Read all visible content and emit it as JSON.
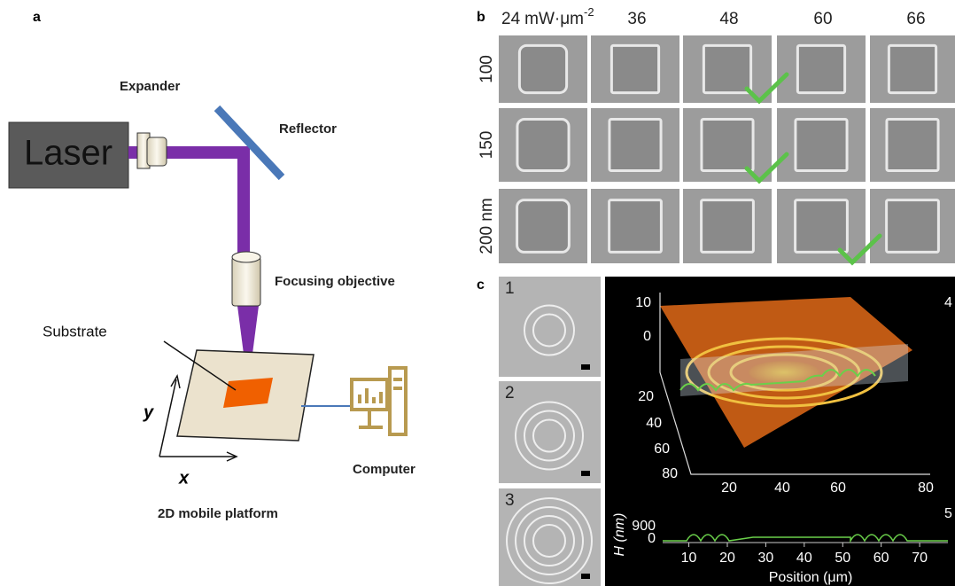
{
  "panel_a": {
    "label": "a",
    "laser": "Laser",
    "expander": "Expander",
    "reflector": "Reflector",
    "objective": "Focusing objective",
    "substrate": "Substrate",
    "computer": "Computer",
    "platform": "2D mobile platform",
    "axis_y": "y",
    "axis_x": "x"
  },
  "panel_b": {
    "label": "b",
    "columns": [
      "24",
      "36",
      "48",
      "60",
      "66"
    ],
    "column_unit": "mW·μm",
    "column_unit_exponent": "-2",
    "rows": [
      "100",
      "150",
      "200 nm"
    ]
  },
  "panel_c": {
    "label": "c",
    "insets": [
      "1",
      "2",
      "3"
    ],
    "surface": {
      "label": "4",
      "z_ticks": [
        10,
        0
      ],
      "y_ticks": [
        20,
        40,
        60,
        80
      ],
      "x_ticks": [
        20,
        40,
        60,
        80
      ]
    },
    "profile": {
      "label": "5",
      "y_label": "H (nm)",
      "y_ticks": [
        900,
        0
      ],
      "x_ticks": [
        10,
        20,
        30,
        40,
        50,
        60,
        70
      ],
      "x_label": "Position (μm)"
    }
  }
}
